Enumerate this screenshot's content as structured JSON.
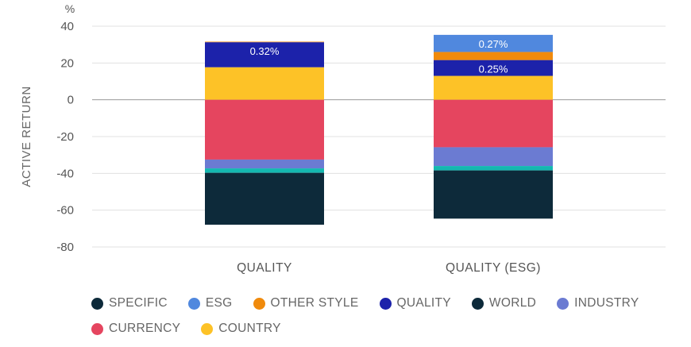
{
  "chart_data": {
    "type": "bar",
    "stacked": true,
    "ylabel": "ACTIVE RETURN",
    "yunit": "%",
    "ylim": [
      -80,
      40
    ],
    "yticks": [
      40,
      20,
      0,
      -20,
      -40,
      -60,
      -80
    ],
    "grid": true,
    "legend_position": "bottom",
    "categories": [
      "QUALITY",
      "QUALITY (ESG)"
    ],
    "series": [
      {
        "name": "SPECIFIC",
        "color": "#0d2a3a",
        "bar_color": "#14b8b0",
        "values": [
          -2.4,
          -2.4
        ]
      },
      {
        "name": "ESG",
        "color": "#5088de",
        "values": [
          0,
          9.3
        ]
      },
      {
        "name": "OTHER STYLE",
        "color": "#f08a0c",
        "values": [
          0.3,
          4.4
        ]
      },
      {
        "name": "QUALITY",
        "color": "#1c22aa",
        "values": [
          13.6,
          8.6
        ],
        "labels": [
          "0.32%",
          "0.25%"
        ]
      },
      {
        "name": "WORLD",
        "color": "#0d2a3a",
        "values": [
          -28.2,
          -26.2
        ]
      },
      {
        "name": "INDUSTRY",
        "color": "#6b7bd2",
        "values": [
          -4.8,
          -10.2
        ]
      },
      {
        "name": "CURRENCY",
        "color": "#e5455f",
        "values": [
          -32.5,
          -25.8
        ]
      },
      {
        "name": "COUNTRY",
        "color": "#fdc227",
        "values": [
          17.7,
          13.0
        ]
      }
    ],
    "data_labels": {
      "ESG": [
        "",
        "0.27%"
      ]
    },
    "stack_order_positive": [
      "COUNTRY",
      "QUALITY",
      "OTHER STYLE",
      "ESG"
    ],
    "stack_order_negative": [
      "CURRENCY",
      "INDUSTRY",
      "SPECIFIC",
      "WORLD"
    ]
  }
}
